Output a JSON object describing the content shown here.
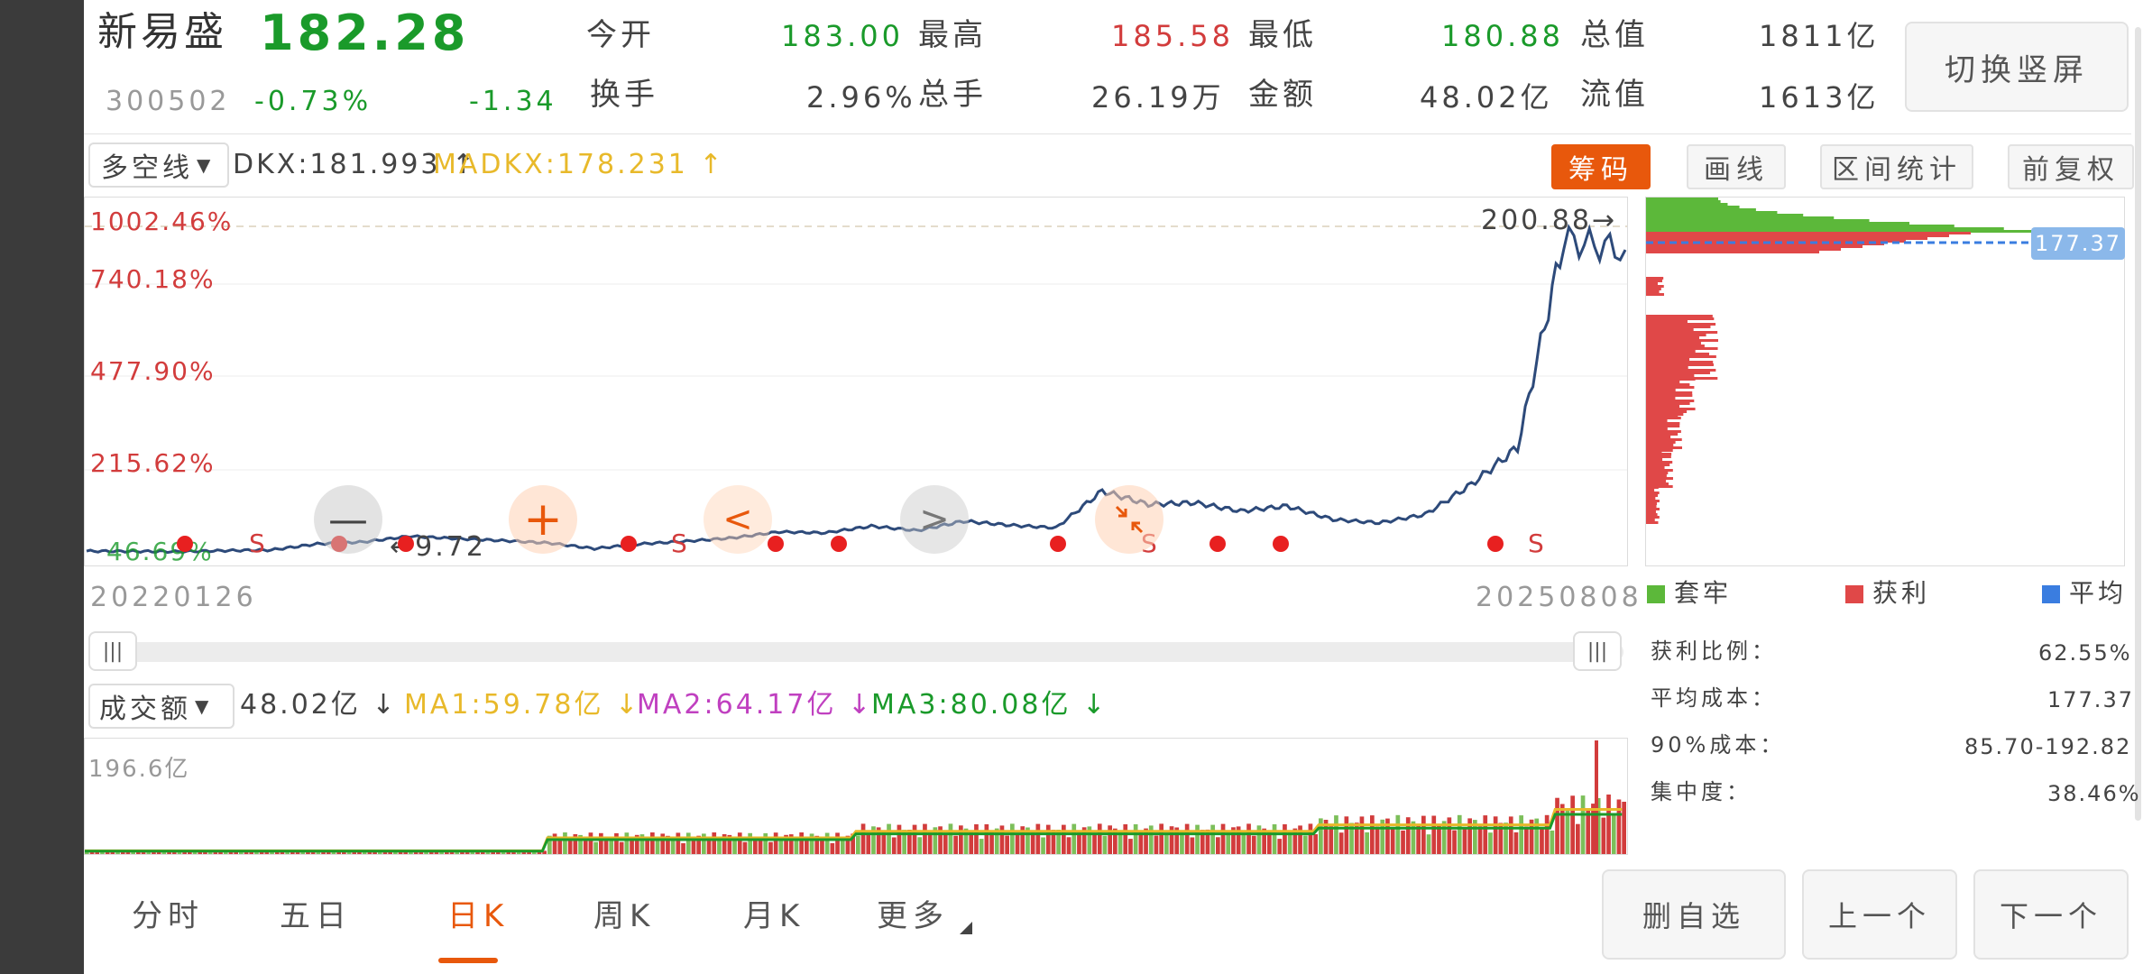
{
  "header": {
    "stock_name": "新易盛",
    "price": "182.28",
    "code": "300502",
    "change_pct": "-0.73%",
    "change": "-1.34",
    "open_label": "今开",
    "open": "183.00",
    "high_label": "最高",
    "high": "185.58",
    "low_label": "最低",
    "low": "180.88",
    "total_value_label": "总值",
    "total_value": "1811亿",
    "turnover_label": "换手",
    "turnover": "2.96%",
    "volume_label": "总手",
    "volume": "26.19万",
    "amount_label": "金额",
    "amount": "48.02亿",
    "float_value_label": "流值",
    "float_value": "1613亿",
    "switch_button": "切换竖屏"
  },
  "toolbar": {
    "indicator_select": "多空线",
    "dkx": "DKX:181.993 ↑",
    "madkx": "MADKX:178.231 ↑",
    "chips_button": "筹码",
    "draw_button": "画线",
    "range_button": "区间统计",
    "adjust_button": "前复权"
  },
  "main_chart": {
    "y_labels": [
      "1002.46%",
      "740.18%",
      "477.90%",
      "215.62%",
      "46.69%"
    ],
    "max_marker": "200.88→",
    "min_marker": "←9.72",
    "start_date": "20220126",
    "end_date": "20250808",
    "sell_marker": "S"
  },
  "chips_panel": {
    "avg_badge": "177.37",
    "legend_trapped": "套牢",
    "legend_profit": "获利",
    "legend_avg": "平均",
    "profit_ratio_label": "获利比例：",
    "profit_ratio": "62.55%",
    "avg_cost_label": "平均成本：",
    "avg_cost": "177.37",
    "cost90_label": "90%成本：",
    "cost90": "85.70-192.82",
    "concentration_label": "集中度：",
    "concentration": "38.46%"
  },
  "volume": {
    "select": "成交额",
    "value": "48.02亿 ↓",
    "ma1": "MA1:59.78亿 ↓",
    "ma2": "MA2:64.17亿 ↓",
    "ma3": "MA3:80.08亿 ↓",
    "max_label": "196.6亿"
  },
  "bottom_nav": {
    "tabs": [
      "分时",
      "五日",
      "日K",
      "周K",
      "月K",
      "更多"
    ],
    "delete_button": "删自选",
    "prev_button": "上一个",
    "next_button": "下一个"
  },
  "colors": {
    "up": "#d23c3c",
    "down": "#1a9a2a",
    "accent": "#e8580c",
    "line": "#2d4a7a",
    "madkx": "#e8b92a",
    "ma2": "#c040c0"
  },
  "chart_data": {
    "type": "line",
    "series": [
      {
        "name": "",
        "x": [
          0,
          3,
          6,
          9,
          12,
          15,
          18,
          21,
          24,
          27,
          30,
          33,
          36,
          39,
          42,
          45,
          48,
          51,
          54,
          57,
          60,
          63,
          66,
          69,
          72,
          75,
          78,
          81,
          84,
          87,
          90,
          93,
          96,
          100
        ],
        "values": [
          0.5,
          0,
          -1,
          2,
          4,
          22,
          28,
          45,
          38,
          32,
          25,
          8,
          22,
          30,
          40,
          58,
          55,
          75,
          62,
          90,
          78,
          70,
          180,
          140,
          145,
          120,
          135,
          95,
          85,
          110,
          200,
          310,
          930,
          900
        ]
      }
    ],
    "ylim": [
      -10,
      1002.46
    ],
    "y_axis_percent_ticks": [
      "1002.46%",
      "740.18%",
      "477.90%",
      "215.62%",
      "46.69%"
    ],
    "x_range": [
      "20220126",
      "20250808"
    ]
  }
}
